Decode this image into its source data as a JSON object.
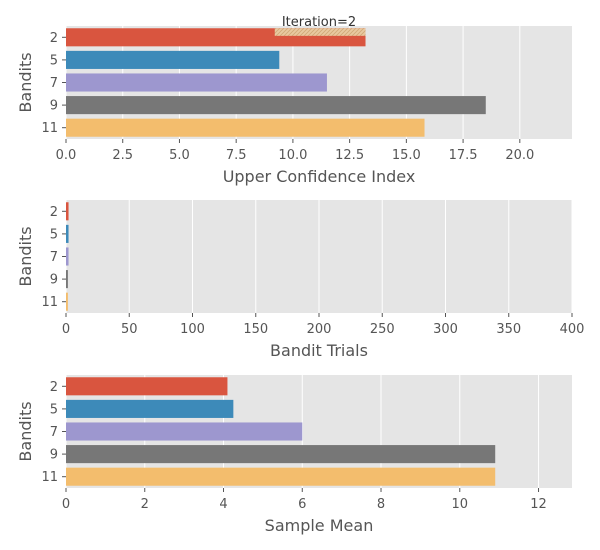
{
  "title": "Iteration=2",
  "colors": {
    "panel_bg": "#e5e5e5",
    "grid": "#ffffff",
    "bars": [
      "#d9553f",
      "#3d8ab9",
      "#9d97cf",
      "#777777",
      "#f3bd6d"
    ],
    "hatch": "#e9c9a0"
  },
  "chart_data": [
    {
      "type": "bar",
      "orientation": "horizontal",
      "categories": [
        "2",
        "5",
        "7",
        "9",
        "11"
      ],
      "values": [
        13.2,
        9.4,
        11.5,
        18.5,
        15.8
      ],
      "highlight": {
        "category": "2",
        "from": 9.2,
        "to": 13.2
      },
      "xlabel": "Upper Confidence Index",
      "ylabel": "Bandits",
      "xlim": [
        0,
        22.3
      ],
      "xticks": [
        "0.0",
        "2.5",
        "5.0",
        "7.5",
        "10.0",
        "12.5",
        "15.0",
        "17.5",
        "20.0"
      ],
      "xtick_values": [
        0,
        2.5,
        5,
        7.5,
        10,
        12.5,
        15,
        17.5,
        20
      ],
      "grid": true
    },
    {
      "type": "bar",
      "orientation": "horizontal",
      "categories": [
        "2",
        "5",
        "7",
        "9",
        "11"
      ],
      "values": [
        2,
        2,
        2,
        1.5,
        1.5
      ],
      "xlabel": "Bandit Trials",
      "ylabel": "Bandits",
      "xlim": [
        0,
        400
      ],
      "xticks": [
        "0",
        "50",
        "100",
        "150",
        "200",
        "250",
        "300",
        "350",
        "400"
      ],
      "xtick_values": [
        0,
        50,
        100,
        150,
        200,
        250,
        300,
        350,
        400
      ],
      "grid": true
    },
    {
      "type": "bar",
      "orientation": "horizontal",
      "categories": [
        "2",
        "5",
        "7",
        "9",
        "11"
      ],
      "values": [
        4.1,
        4.25,
        6.0,
        10.9,
        10.9
      ],
      "xlabel": "Sample Mean",
      "ylabel": "Bandits",
      "xlim": [
        0,
        12.85
      ],
      "xticks": [
        "0",
        "2",
        "4",
        "6",
        "8",
        "10",
        "12"
      ],
      "xtick_values": [
        0,
        2,
        4,
        6,
        8,
        10,
        12
      ],
      "grid": true
    }
  ]
}
